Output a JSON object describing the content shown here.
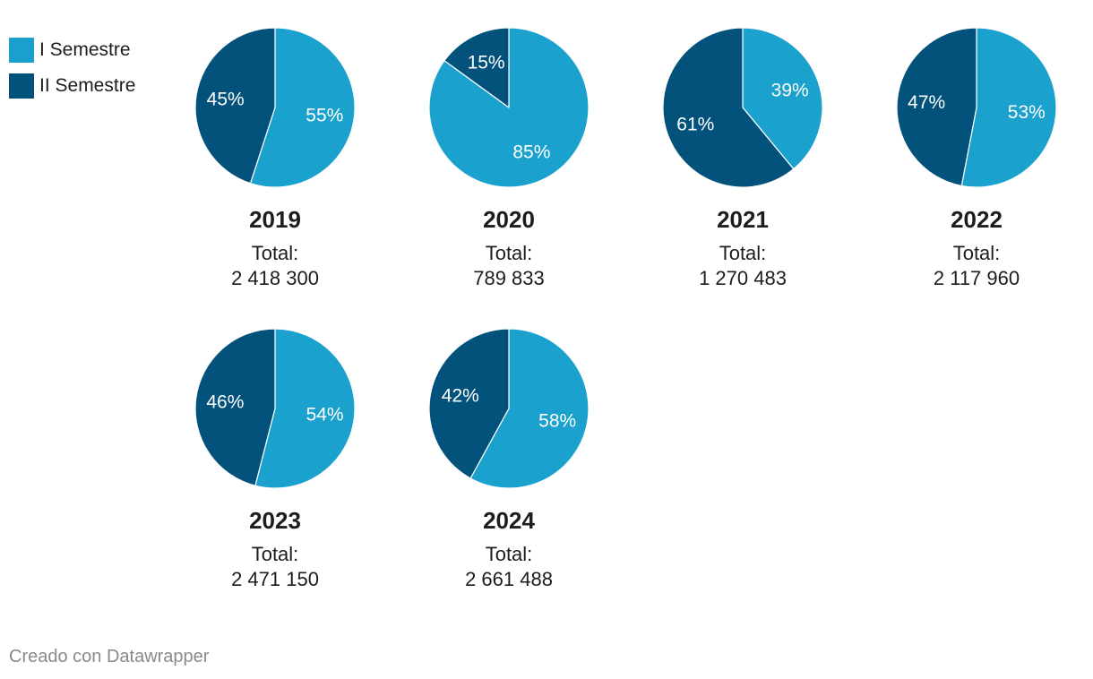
{
  "colors": {
    "semestre_1": "#1aa1cd",
    "semestre_2": "#03527b"
  },
  "legend": [
    {
      "label": "I Semestre",
      "color": "#1aa1cd"
    },
    {
      "label": "II Semestre",
      "color": "#03527b"
    }
  ],
  "chart_data": {
    "type": "pie",
    "series_names": [
      "I Semestre",
      "II Semestre"
    ],
    "total_label": "Total:",
    "pies": [
      {
        "year": "2019",
        "total": "2 418 300",
        "values": [
          55,
          45
        ],
        "labels": [
          "55%",
          "45%"
        ]
      },
      {
        "year": "2020",
        "total": "789 833",
        "values": [
          85,
          15
        ],
        "labels": [
          "85%",
          "15%"
        ]
      },
      {
        "year": "2021",
        "total": "1 270 483",
        "values": [
          39,
          61
        ],
        "labels": [
          "39%",
          "61%"
        ]
      },
      {
        "year": "2022",
        "total": "2 117 960",
        "values": [
          53,
          47
        ],
        "labels": [
          "53%",
          "47%"
        ]
      },
      {
        "year": "2023",
        "total": "2 471 150",
        "values": [
          54,
          46
        ],
        "labels": [
          "54%",
          "46%"
        ]
      },
      {
        "year": "2024",
        "total": "2 661 488",
        "values": [
          58,
          42
        ],
        "labels": [
          "58%",
          "42%"
        ]
      }
    ]
  },
  "footer": {
    "credit": "Creado con Datawrapper"
  }
}
